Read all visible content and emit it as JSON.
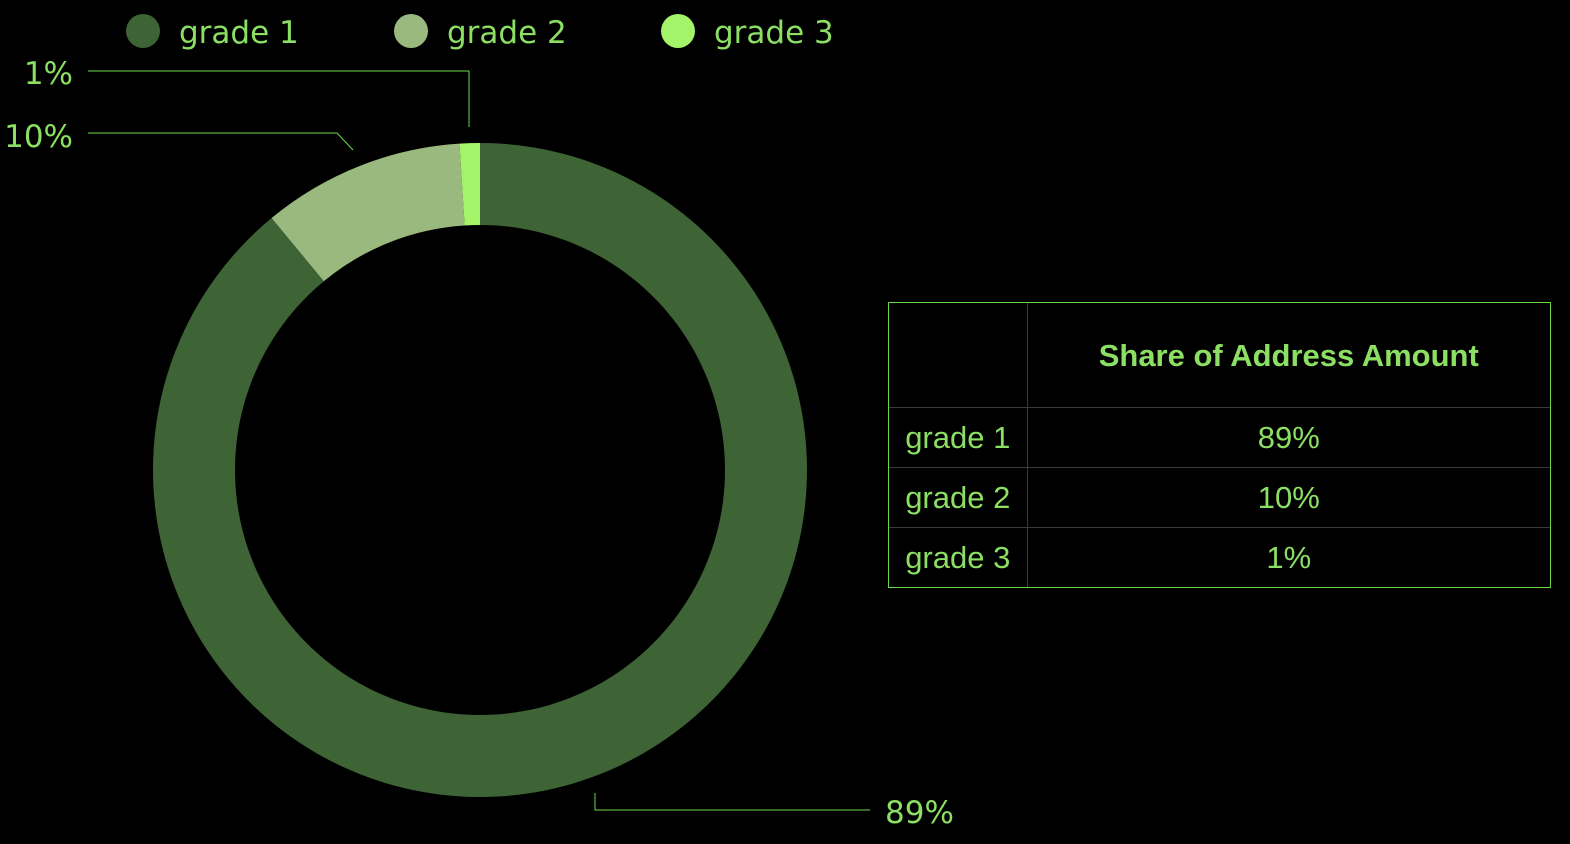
{
  "colors": {
    "background": "#000000",
    "text": "#8be063",
    "leader": "#6cd84a",
    "table_border": "#3a3a3a",
    "table_frame": "#6cd84a"
  },
  "chart_data": {
    "type": "pie",
    "variant": "donut",
    "categories": [
      "grade 1",
      "grade 2",
      "grade 3"
    ],
    "values": [
      89,
      10,
      1
    ],
    "labels": [
      "89%",
      "10%",
      "1%"
    ],
    "colors": [
      "#3e6334",
      "#9ab97e",
      "#a4f46a"
    ],
    "legend": {
      "position": "top-left",
      "entries": [
        "grade 1",
        "grade 2",
        "grade 3"
      ]
    },
    "title": ""
  },
  "table": {
    "header": [
      "",
      "Share of Address Amount"
    ],
    "rows": [
      [
        "grade 1",
        "89%"
      ],
      [
        "grade 2",
        "10%"
      ],
      [
        "grade 3",
        "1%"
      ]
    ]
  }
}
